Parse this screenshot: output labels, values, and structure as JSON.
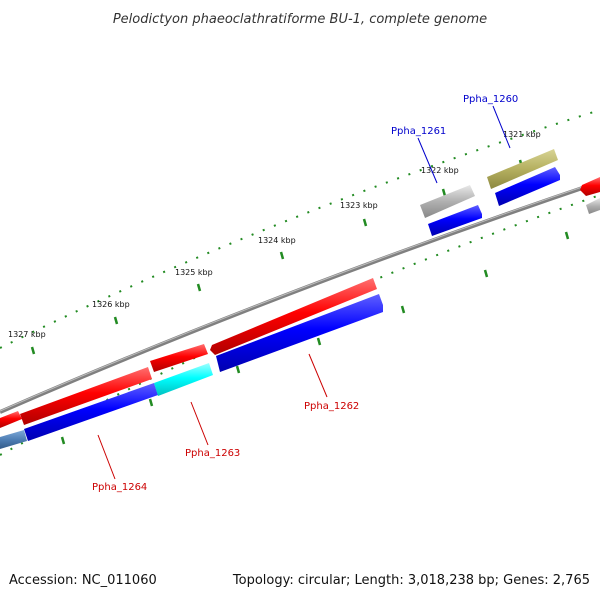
{
  "title": "Pelodictyon phaeoclathratiforme BU-1, complete genome",
  "footer": {
    "accession": "Accession: NC_011060",
    "summary": "Topology: circular; Length: 3,018,238 bp; Genes: 2,765"
  },
  "scale_labels": [
    "1321 kbp",
    "1322 kbp",
    "1323 kbp",
    "1324 kbp",
    "1325 kbp",
    "1326 kbp",
    "1327 kbp"
  ],
  "gene_labels": [
    "Ppha_1260",
    "Ppha_1261",
    "Ppha_1262",
    "Ppha_1263",
    "Ppha_1264"
  ],
  "colors": {
    "forward_strand": "#ff0000",
    "reverse_strand": "#0000ff",
    "backbone": "#808080",
    "tick": "#228b22",
    "label_blue": "#0000cc",
    "label_red": "#cc0000",
    "highlight_cyan": "#00ffff",
    "olive": "#b5b060",
    "grey_gene": "#b0b0b0",
    "steel": "#4f7fb5"
  }
}
